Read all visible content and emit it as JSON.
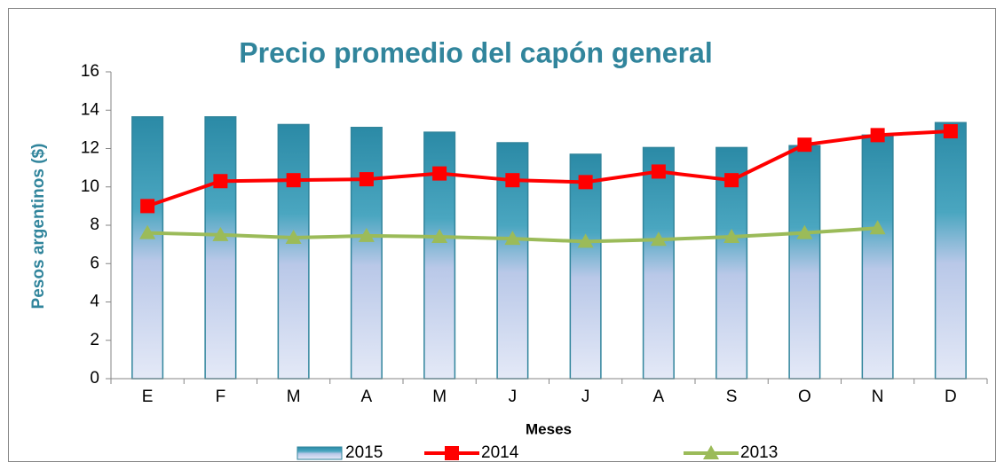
{
  "chart_data": {
    "type": "combo",
    "title": "Precio promedio del capón general",
    "x_label": "Meses",
    "y_label": "Pesos argentinos ($)",
    "categories": [
      "E",
      "F",
      "M",
      "A",
      "M",
      "J",
      "J",
      "A",
      "S",
      "O",
      "N",
      "D"
    ],
    "series": [
      {
        "name": "2015",
        "type": "bar",
        "color": "#31859c",
        "values": [
          13.65,
          13.65,
          13.25,
          13.1,
          12.85,
          12.3,
          11.7,
          12.05,
          12.05,
          12.15,
          12.7,
          13.35
        ]
      },
      {
        "name": "2014",
        "type": "line",
        "marker": "square",
        "color": "#ff0000",
        "values": [
          9.0,
          10.3,
          10.35,
          10.4,
          10.7,
          10.35,
          10.25,
          10.8,
          10.35,
          12.2,
          12.7,
          12.9
        ]
      },
      {
        "name": "2013",
        "type": "line",
        "marker": "triangle",
        "color": "#9bbb59",
        "values": [
          7.6,
          7.5,
          7.35,
          7.45,
          7.4,
          7.3,
          7.15,
          7.25,
          7.4,
          7.6,
          7.85,
          null
        ]
      }
    ],
    "ylim": [
      0,
      16
    ],
    "yticks": [
      0,
      2,
      4,
      6,
      8,
      10,
      12,
      14,
      16
    ],
    "grid": false,
    "legend": "bottom"
  }
}
